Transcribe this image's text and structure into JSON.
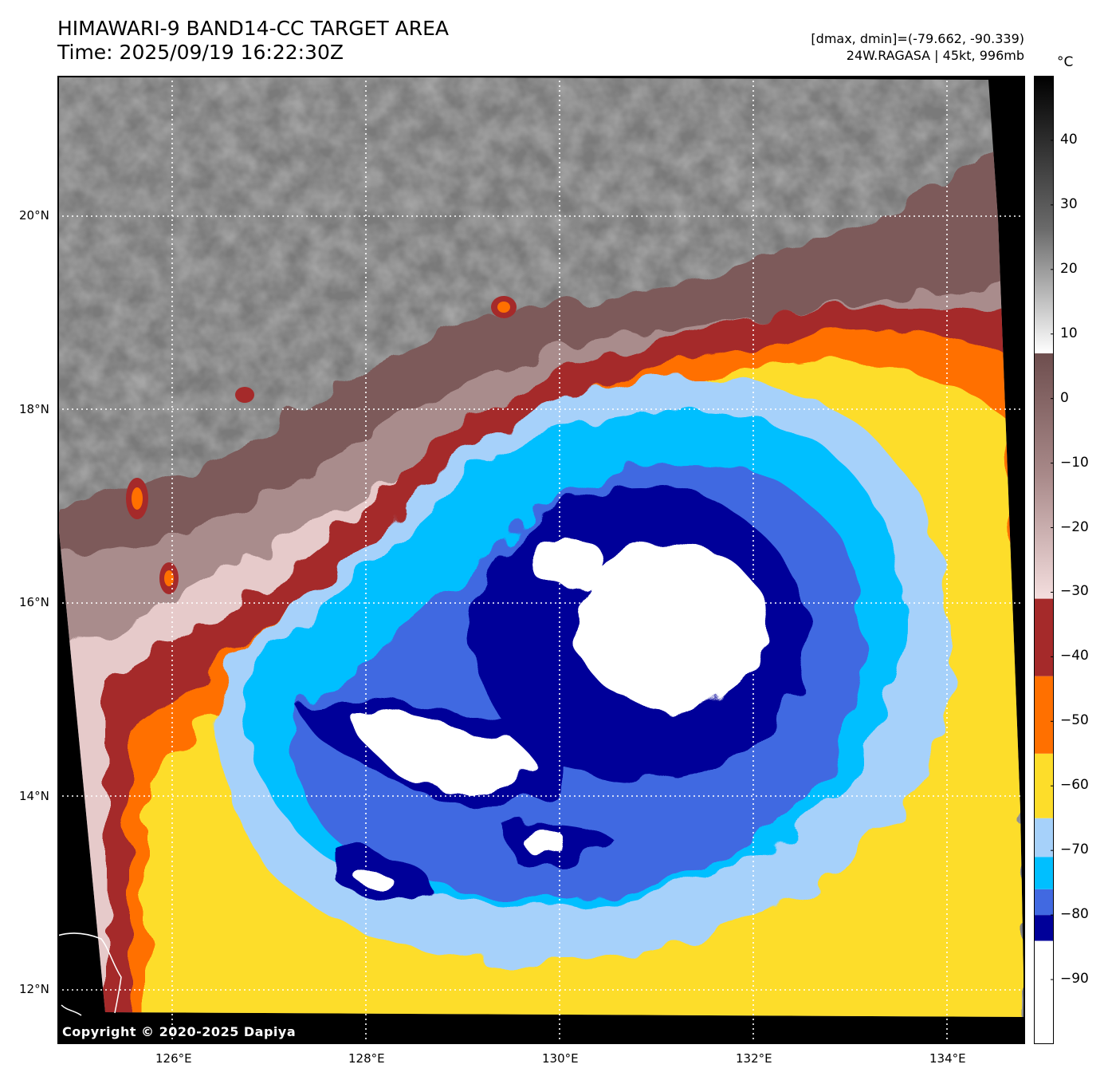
{
  "title": {
    "line1": "HIMAWARI-9 BAND14-CC TARGET AREA",
    "line2": "Time: 2025/09/19 16:22:30Z"
  },
  "info": {
    "line1": "[dmax, dmin]=(-79.662, -90.339)",
    "line2": "24W.RAGASA | 45kt, 996mb"
  },
  "map": {
    "lon_ticks": [
      "126°E",
      "128°E",
      "130°E",
      "132°E",
      "134°E"
    ],
    "lat_ticks": [
      "20°N",
      "18°N",
      "16°N",
      "14°N",
      "12°N"
    ],
    "extent": {
      "lon": [
        124.8,
        134.8
      ],
      "lat": [
        11.55,
        21.45
      ]
    },
    "copyright": "Copyright © 2020-2025 Dapiya"
  },
  "colorbar": {
    "unit": "°C",
    "ticks": [
      "40",
      "30",
      "20",
      "10",
      "0",
      "−10",
      "−20",
      "−30",
      "−40",
      "−50",
      "−60",
      "−70",
      "−80",
      "−90"
    ],
    "range": [
      -100,
      50
    ],
    "bands": [
      {
        "from": -100,
        "to": -84,
        "color": "#ffffff"
      },
      {
        "from": -84,
        "to": -80,
        "color": "#000099"
      },
      {
        "from": -80,
        "to": -76,
        "color": "#4169e1"
      },
      {
        "from": -76,
        "to": -71,
        "color": "#00bfff"
      },
      {
        "from": -71,
        "to": -65,
        "color": "#a6d1fa"
      },
      {
        "from": -65,
        "to": -55,
        "color": "#fddd2a"
      },
      {
        "from": -55,
        "to": -43,
        "color": "#ff7000"
      },
      {
        "from": -43,
        "to": -31,
        "color": "#a52a2a"
      },
      {
        "from": -31,
        "to": 7,
        "color": "gradient-pink-to-brown"
      },
      {
        "from": 7,
        "to": 50,
        "color": "gradient-white-to-black"
      }
    ]
  }
}
